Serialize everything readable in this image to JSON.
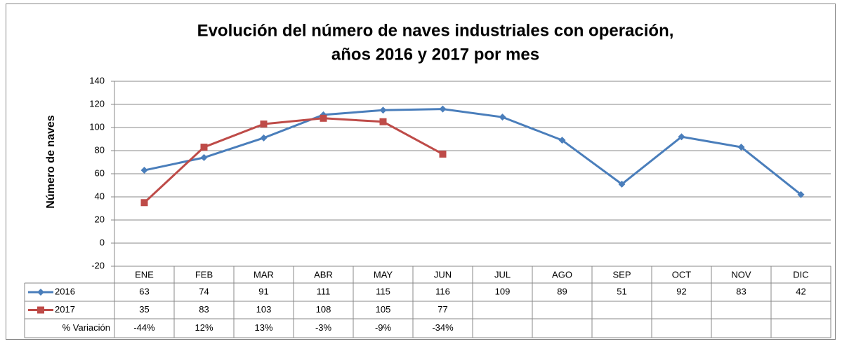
{
  "chart_data": {
    "type": "line",
    "title": "Evolución del número de naves industriales con operación,",
    "subtitle": "años 2016 y 2017 por mes",
    "y_label": "Número de naves",
    "categories": [
      "ENE",
      "FEB",
      "MAR",
      "ABR",
      "MAY",
      "JUN",
      "JUL",
      "AGO",
      "SEP",
      "OCT",
      "NOV",
      "DIC"
    ],
    "series": [
      {
        "name": "2016",
        "color": "#4a7ebb",
        "marker": "diamond",
        "values": [
          63,
          74,
          91,
          111,
          115,
          116,
          109,
          89,
          51,
          92,
          83,
          42
        ]
      },
      {
        "name": "2017",
        "color": "#be4b48",
        "marker": "square",
        "values": [
          35,
          83,
          103,
          108,
          105,
          77,
          null,
          null,
          null,
          null,
          null,
          null
        ]
      }
    ],
    "variation": {
      "name": "% Variación",
      "values": [
        -44,
        12,
        13,
        -3,
        -9,
        -34
      ],
      "value_labels": [
        "-44%",
        "12%",
        "13%",
        "-3%",
        "-9%",
        "-34%"
      ]
    },
    "ylim": [
      -20,
      140
    ],
    "yticks": [
      -20,
      0,
      20,
      40,
      60,
      80,
      100,
      120,
      140
    ],
    "grid": true
  }
}
